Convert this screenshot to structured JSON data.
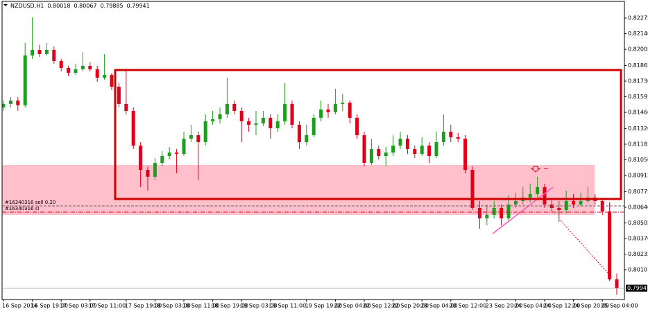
{
  "chart_data": {
    "type": "candlestick",
    "symbol": "NZDUSD,H1",
    "header_values": [
      0.80018,
      0.80067,
      0.79885,
      0.79941
    ],
    "up_color": "#1e9e1e",
    "down_color": "#e0001a",
    "categories": [
      "16 Sep 2014",
      null,
      null,
      null,
      "16 Sep 19:00",
      null,
      null,
      null,
      "17 Sep 03:00",
      null,
      null,
      null,
      "17 Sep 11:00",
      null,
      null,
      null,
      null,
      "17 Sep 19:00",
      null,
      null,
      null,
      "18 Sep 03:00",
      null,
      null,
      null,
      "18 Sep 11:00",
      null,
      null,
      null,
      "18 Sep 19:00",
      null,
      null,
      null,
      "19 Sep 03:00",
      null,
      null,
      null,
      "19 Sep 11:00",
      null,
      null,
      null,
      null,
      "19 Sep 19:00",
      null,
      null,
      null,
      "22 Sep 04:00",
      null,
      null,
      null,
      "22 Sep 12:00",
      null,
      null,
      null,
      "22 Sep 20:00",
      null,
      null,
      null,
      "23 Sep 04:00",
      null,
      null,
      null,
      "23 Sep 12:00",
      null,
      null,
      null,
      null,
      "23 Sep 20:00",
      null,
      null,
      null,
      "24 Sep 04:00",
      null,
      null,
      null,
      "24 Sep 12:00",
      null,
      null,
      null,
      "24 Sep 20:00",
      null,
      null,
      null,
      "25 Sep 04:00",
      null,
      null
    ],
    "open": [
      0.81503,
      0.81533,
      0.81562,
      0.81521,
      0.81952,
      0.82,
      0.81964,
      0.82,
      0.81904,
      0.81844,
      0.81802,
      0.81832,
      0.81862,
      0.81832,
      0.8176,
      0.81784,
      0.81682,
      0.81533,
      0.81473,
      0.81173,
      0.80963,
      0.80904,
      0.81023,
      0.81083,
      0.81113,
      0.81101,
      0.81233,
      0.81263,
      0.81203,
      0.81383,
      0.81401,
      0.81443,
      0.81533,
      0.81473,
      0.81383,
      0.81353,
      0.81365,
      0.81413,
      0.81323,
      0.81383,
      0.81533,
      0.81353,
      0.81203,
      0.81263,
      0.81413,
      0.81485,
      0.81461,
      0.81533,
      0.81544,
      0.81413,
      0.81263,
      0.81023,
      0.81143,
      0.81083,
      0.81113,
      0.81173,
      0.81233,
      0.81143,
      0.81101,
      0.81173,
      0.81083,
      0.81203,
      0.81293,
      0.81245,
      0.81233,
      0.80963,
      0.80634,
      0.80544,
      0.80574,
      0.80634,
      0.80544,
      0.80664,
      0.80694,
      0.80724,
      0.80754,
      0.80814,
      0.80664,
      0.80634,
      0.80616,
      0.80694,
      0.80664,
      0.80694,
      0.80724,
      0.80694,
      0.80604,
      0.80018
    ],
    "high": [
      0.81562,
      0.81592,
      0.81592,
      0.8206,
      0.82281,
      0.82042,
      0.8206,
      0.8203,
      0.81922,
      0.81862,
      0.8188,
      0.81982,
      0.81892,
      0.81862,
      0.81964,
      0.81802,
      0.81712,
      0.81832,
      0.81503,
      0.81203,
      0.80993,
      0.81065,
      0.81125,
      0.81161,
      0.81143,
      0.81293,
      0.81353,
      0.81293,
      0.81443,
      0.81473,
      0.81503,
      0.8176,
      0.81562,
      0.81503,
      0.81413,
      0.81473,
      0.81473,
      0.81443,
      0.81443,
      0.81712,
      0.81562,
      0.81383,
      0.81353,
      0.81443,
      0.81562,
      0.81533,
      0.81664,
      0.81622,
      0.81562,
      0.81443,
      0.81293,
      0.81233,
      0.81173,
      0.81161,
      0.81263,
      0.81293,
      0.81263,
      0.81173,
      0.81245,
      0.81203,
      0.81293,
      0.81443,
      0.81353,
      0.81281,
      0.81263,
      0.80993,
      0.80694,
      0.80664,
      0.80694,
      0.80664,
      0.80742,
      0.80766,
      0.80814,
      0.80844,
      0.80904,
      0.80844,
      0.80706,
      0.80694,
      0.80784,
      0.80754,
      0.80766,
      0.80814,
      0.80754,
      0.80706,
      0.80682,
      0.80067
    ],
    "low": [
      0.81473,
      0.81503,
      0.81473,
      0.81503,
      0.81922,
      0.8194,
      0.81952,
      0.8188,
      0.81814,
      0.81772,
      0.81784,
      0.81814,
      0.81814,
      0.81724,
      0.81742,
      0.81652,
      0.81503,
      0.81443,
      0.81143,
      0.80814,
      0.80784,
      0.80874,
      0.80993,
      0.81053,
      0.80934,
      0.81083,
      0.81203,
      0.80874,
      0.81173,
      0.81353,
      0.81365,
      0.81413,
      0.81443,
      0.81203,
      0.81293,
      0.81263,
      0.81341,
      0.81233,
      0.81293,
      0.81353,
      0.81323,
      0.81143,
      0.81173,
      0.81245,
      0.81383,
      0.81413,
      0.81443,
      0.81473,
      0.81365,
      0.81233,
      0.80993,
      0.81005,
      0.81053,
      0.80993,
      0.81083,
      0.81143,
      0.81101,
      0.81065,
      0.81083,
      0.81023,
      0.81065,
      0.81173,
      0.81203,
      0.81203,
      0.80934,
      0.80616,
      0.80454,
      0.80484,
      0.80544,
      0.80484,
      0.80526,
      0.80634,
      0.80664,
      0.80682,
      0.80724,
      0.80634,
      0.80604,
      0.80514,
      0.80586,
      0.80634,
      0.80646,
      0.80682,
      0.80664,
      0.80574,
      0.80005,
      0.79885
    ],
    "close": [
      0.81533,
      0.81562,
      0.81521,
      0.81952,
      0.82,
      0.81964,
      0.82,
      0.81904,
      0.81844,
      0.81802,
      0.81832,
      0.81862,
      0.81832,
      0.8176,
      0.81784,
      0.81682,
      0.81533,
      0.81473,
      0.81173,
      0.80963,
      0.80904,
      0.81023,
      0.81083,
      0.81113,
      0.81101,
      0.81233,
      0.81263,
      0.81203,
      0.81383,
      0.81401,
      0.81443,
      0.81533,
      0.81473,
      0.81383,
      0.81353,
      0.81365,
      0.81413,
      0.81323,
      0.81383,
      0.81533,
      0.81353,
      0.81203,
      0.81263,
      0.81413,
      0.81485,
      0.81461,
      0.81533,
      0.81544,
      0.81413,
      0.81263,
      0.81023,
      0.81143,
      0.81083,
      0.81113,
      0.81173,
      0.81233,
      0.81143,
      0.81101,
      0.81173,
      0.81083,
      0.81203,
      0.81293,
      0.81245,
      0.81233,
      0.80963,
      0.80634,
      0.80544,
      0.80574,
      0.80634,
      0.80544,
      0.80664,
      0.80694,
      0.80724,
      0.80754,
      0.80814,
      0.80664,
      0.80634,
      0.80616,
      0.80694,
      0.80664,
      0.80694,
      0.80724,
      0.80694,
      0.80604,
      0.80018,
      0.79941
    ],
    "ylim": [
      0.79843,
      0.82419
    ],
    "yticks": [
      0.82275,
      {
        "value": 0.8214,
        "label": "0.82140"
      },
      0.82005,
      0.81865,
      {
        "value": 0.8173,
        "label": "0.81730"
      },
      0.81595,
      {
        "value": 0.8146,
        "label": "0.81460"
      },
      {
        "value": 0.8132,
        "label": "0.81320"
      },
      0.81185,
      {
        "value": 0.8105,
        "label": "0.81050"
      },
      0.80915,
      0.80775,
      {
        "value": 0.8064,
        "label": "0.80640"
      },
      0.80505,
      {
        "value": 0.8037,
        "label": "0.80370"
      },
      0.80235,
      0.80101
    ],
    "order_lines": [
      {
        "label": "#16340316 sell 0.20",
        "value": 0.80652
      },
      {
        "label": "#16340316 sl",
        "value": 0.80598
      }
    ],
    "current_price": 0.79941
  }
}
